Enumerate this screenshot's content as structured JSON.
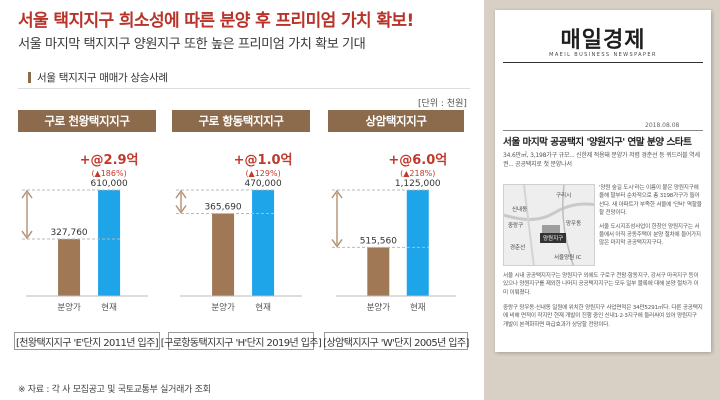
{
  "headline": "서울 택지지구 희소성에 따른 분양 후 프리미엄 가치 확보!",
  "subheadline": "서울 마지막 택지지구 양원지구 또한 높은 프리미엄 가치 확보 기대",
  "section_title": "서울 택지지구 매매가 상승사례",
  "unit_label": "[단위 : 천원]",
  "colors": {
    "headline": "#b8342b",
    "panel_header": "#8c6a4c",
    "bar_past": "#a07856",
    "bar_now": "#1ea4e8",
    "premium": "#c0392b",
    "arrow": "#b08f72"
  },
  "chart_data": [
    {
      "type": "bar",
      "title": "구로 천왕택지지구",
      "categories": [
        "분양가",
        "현재"
      ],
      "values": [
        327760,
        610000
      ],
      "value_labels": [
        "327,760",
        "610,000"
      ],
      "premium": "+@2.9억",
      "premium_pct": "(▲186%)",
      "footer": "[천왕택지지구 'E'단지 2011년 입주]"
    },
    {
      "type": "bar",
      "title": "구로 항동택지지구",
      "categories": [
        "분양가",
        "현재"
      ],
      "values": [
        365690,
        470000
      ],
      "value_labels": [
        "365,690",
        "470,000"
      ],
      "premium": "+@1.0억",
      "premium_pct": "(▲129%)",
      "footer": "[구로항동택지지구 'H'단지 2019년 입주]"
    },
    {
      "type": "bar",
      "title": "상암택지지구",
      "categories": [
        "분양가",
        "현재"
      ],
      "values": [
        515560,
        1125000
      ],
      "value_labels": [
        "515,560",
        "1,125,000"
      ],
      "premium": "+@6.0억",
      "premium_pct": "(▲218%)",
      "footer": "[상암택지지구 'W'단지 2005년 입주]"
    }
  ],
  "source": "※ 자료 : 각 사 모집공고 및 국토교통부 실거래가 조회",
  "newspaper": {
    "logo": "매일경제",
    "logo_sub": "MAEIL BUSINESS NEWSPAPER",
    "date": "2018.08.08",
    "headline": "서울 마지막 공공택지 '양원지구' 연말 분양 스타트",
    "lede": "34.6만㎡, 3,198가구 규모... 신한제 적용돼 분양가 저렴 경춘선 등 퀴드러블 역세권... 공공택지로 첫 분양나서",
    "map_labels": [
      "구리시",
      "신내동",
      "중랑구",
      "망우동",
      "양원지구",
      "경춘선",
      "서울양원 IC"
    ],
    "column_text": "'양원 숲길 도시'라는 이름이 붙은 양원지구에 올해 말부터 순차적으로 총 3198가구가 들어선다. 새 아파트가 부족한 서울에 '단비' 역할을 할 전망이다.",
    "column_text_2": "서울 도시지조성사업이 한창인 양원지구는 서울에서 아직 공동주택이 분양 절차에 들어가지 않은 마지막 공공택지지구다.",
    "paragraph_1": "서울 시내 공공택지지구는 양원지구 외에도 구로구 천왕·항동지구, 강서구 마곡지구 등이 있으나 양원지구를 제외한 나머지 공공택지지구는 모두 일부 블록에 대해 분양 절차가 이미 이뤄졌다.",
    "paragraph_2": "중랑구 망우동·신내동 일원에 위치한 양원지구 사업면적은 34만5291㎡다. 다른 공공택지에 비해 면적이 작지만 현재 개발이 진행 중인 신내1·2·3지구에 둘러싸여 있어 양원지구 개발이 본격화하면 파급효과가 상당할 전망이다."
  }
}
